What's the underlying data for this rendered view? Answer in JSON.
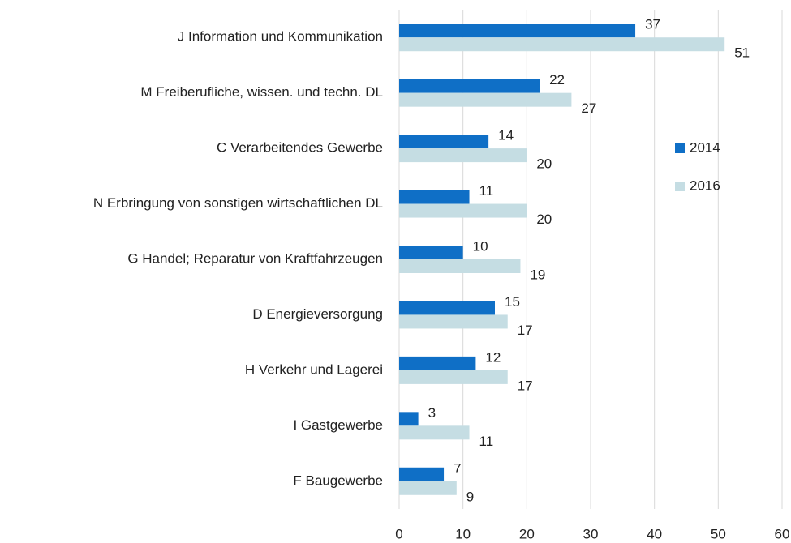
{
  "chart_data": {
    "type": "barh",
    "categories": [
      "J Information und Kommunikation",
      "M Freiberufliche, wissen. und techn. DL",
      "C Verarbeitendes Gewerbe",
      "N Erbringung von sonstigen wirtschaftlichen DL",
      "G Handel; Reparatur von Kraftfahrzeugen",
      "D Energieversorgung",
      "H Verkehr und Lagerei",
      "I Gastgewerbe",
      "F Baugewerbe"
    ],
    "series": [
      {
        "name": "2014",
        "color": "#0f6fc6",
        "values": [
          37,
          22,
          14,
          11,
          10,
          15,
          12,
          3,
          7
        ]
      },
      {
        "name": "2016",
        "color": "#c5dde3",
        "values": [
          51,
          27,
          20,
          20,
          19,
          17,
          17,
          11,
          9
        ]
      }
    ],
    "xlim": [
      0,
      60
    ],
    "xticks": [
      0,
      10,
      20,
      30,
      40,
      50,
      60
    ],
    "grid": true,
    "legend": "right"
  }
}
